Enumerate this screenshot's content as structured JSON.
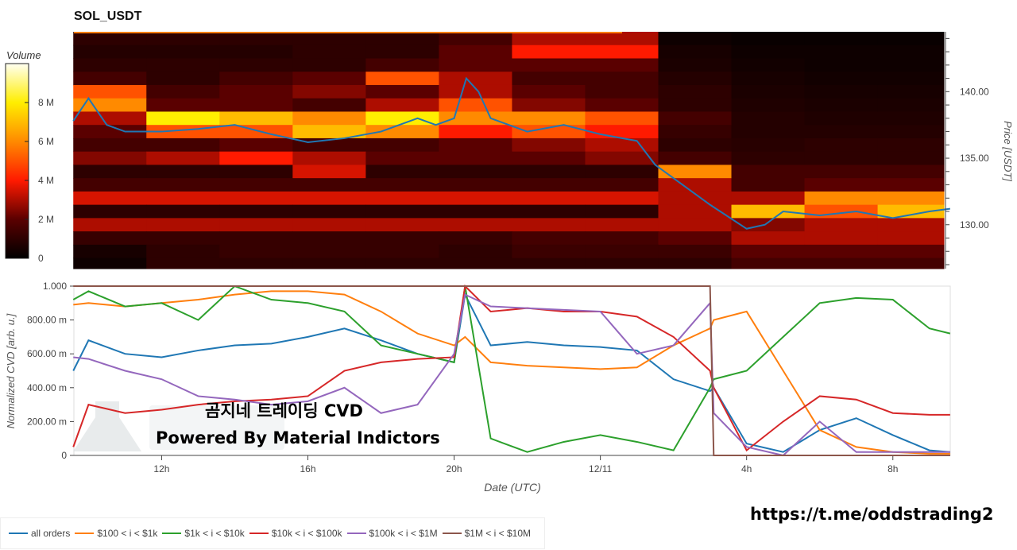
{
  "chart_data": [
    {
      "type": "heatmap",
      "title": "SOL_USDT",
      "ylabel": "Price [USDT]",
      "colorbar_label": "Volume",
      "colorbar_ticks": [
        "0",
        "2 M",
        "4 M",
        "6 M",
        "8 M"
      ],
      "colorbar_range": [
        0,
        10
      ],
      "colormap": [
        "#000000",
        "#5a0000",
        "#ff1a00",
        "#ff8a00",
        "#ffee00",
        "#fffff2"
      ],
      "ylim": [
        126.7,
        144.5
      ],
      "yticks": [
        "130.00",
        "135.00",
        "140.00"
      ],
      "time_columns": [
        "12/10 09:35",
        "12/10 11:35",
        "12/10 13:35",
        "12/10 15:35",
        "12/10 17:35",
        "12/10 19:35",
        "12/10 21:35",
        "12/10 23:35",
        "12/11 01:35",
        "12/11 03:35",
        "12/11 05:35",
        "12/11 07:35"
      ],
      "price_levels": [
        144,
        143,
        142,
        141,
        140,
        139,
        138,
        137,
        136,
        135,
        134,
        133,
        132,
        131,
        130,
        129,
        128,
        127
      ],
      "volume_millions": [
        [
          1,
          1,
          1,
          1,
          1,
          1.5,
          3,
          3,
          0.3,
          0.2,
          0.2,
          0.2
        ],
        [
          0.8,
          0.8,
          0.8,
          1,
          1,
          2,
          4,
          4,
          0.5,
          0.3,
          0.3,
          0.3
        ],
        [
          1,
          1,
          1,
          1,
          1.5,
          2,
          2,
          2,
          0.6,
          0.4,
          0.3,
          0.3
        ],
        [
          1.5,
          1,
          1.5,
          2,
          5,
          3,
          1.5,
          1.5,
          0.8,
          0.5,
          0.4,
          0.4
        ],
        [
          5,
          1.5,
          2,
          2.5,
          2,
          3,
          2,
          1.5,
          1,
          0.6,
          0.5,
          0.5
        ],
        [
          6,
          2,
          2,
          1.5,
          3,
          5,
          2.5,
          2,
          1,
          0.7,
          0.6,
          0.6
        ],
        [
          3,
          8,
          7,
          6,
          8,
          6,
          6,
          5,
          1.5,
          0.8,
          0.7,
          0.7
        ],
        [
          2,
          5,
          5,
          7,
          6,
          4,
          5,
          4,
          1.2,
          0.8,
          0.8,
          0.8
        ],
        [
          1.5,
          1.5,
          2,
          1.5,
          1.5,
          2,
          2.5,
          3,
          1,
          0.9,
          1,
          1
        ],
        [
          2.5,
          3,
          4,
          3,
          2,
          2,
          2,
          2.5,
          1.5,
          1,
          1,
          1
        ],
        [
          1,
          1,
          1,
          3.5,
          1,
          1,
          1,
          1,
          6,
          1.5,
          1.5,
          1.5
        ],
        [
          1.5,
          1.5,
          1.5,
          1.5,
          1.5,
          1.5,
          1.5,
          1.5,
          3,
          1.5,
          2,
          2
        ],
        [
          3.5,
          3.5,
          3.5,
          3.5,
          3.5,
          3.5,
          3.5,
          3.5,
          3,
          3,
          6,
          6
        ],
        [
          1,
          1,
          1,
          1,
          1,
          1,
          1,
          1,
          3,
          7,
          5,
          7
        ],
        [
          3,
          3,
          3,
          3,
          3,
          3,
          3,
          3,
          3,
          2.5,
          3,
          3
        ],
        [
          1.2,
          1.2,
          1.2,
          1.2,
          1.2,
          1.2,
          1.5,
          1.5,
          2,
          3,
          3,
          3
        ],
        [
          0.5,
          1,
          1.2,
          1.2,
          1.2,
          1,
          1.3,
          1.3,
          1.3,
          2,
          2,
          2
        ],
        [
          0.3,
          1,
          1,
          1,
          1,
          1,
          1,
          1,
          1,
          1.5,
          1.5,
          1.5
        ]
      ],
      "price_line": {
        "color": "#1f77b4",
        "x": [
          "12/10 09:35",
          "12/10 10:00",
          "12/10 10:30",
          "12/10 11:00",
          "12/10 12:00",
          "12/10 13:00",
          "12/10 14:00",
          "12/10 15:00",
          "12/10 16:00",
          "12/10 17:00",
          "12/10 18:00",
          "12/10 19:00",
          "12/10 19:30",
          "12/10 20:00",
          "12/10 20:20",
          "12/10 20:40",
          "12/10 21:00",
          "12/10 22:00",
          "12/10 23:00",
          "12/11 00:00",
          "12/11 01:00",
          "12/11 01:30",
          "12/11 02:00",
          "12/11 03:00",
          "12/11 04:00",
          "12/11 04:30",
          "12/11 05:00",
          "12/11 06:00",
          "12/11 07:00",
          "12/11 08:00",
          "12/11 09:00",
          "12/11 09:34"
        ],
        "y": [
          137.8,
          139.5,
          137.5,
          137,
          137,
          137.2,
          137.5,
          136.8,
          136.2,
          136.5,
          137,
          138,
          137.5,
          138,
          141,
          140,
          138,
          137,
          137.5,
          136.8,
          136.3,
          134.5,
          133.5,
          131.5,
          129.7,
          130,
          131,
          130.7,
          131,
          130.5,
          131,
          131.2
        ]
      }
    },
    {
      "type": "line",
      "xlabel": "Date (UTC)",
      "ylabel": "Normalized CVD [arb. u.]",
      "ylim": [
        0,
        1
      ],
      "yticks": [
        "0",
        "200.00 m",
        "400.00 m",
        "600.00 m",
        "800.00 m",
        "1.000"
      ],
      "xticks": [
        "12h",
        "16h",
        "20h",
        "12/11",
        "4h",
        "8h"
      ],
      "legend_placement": "bottom",
      "x": [
        "12/10 09:35",
        "12/10 10:00",
        "12/10 11:00",
        "12/10 12:00",
        "12/10 13:00",
        "12/10 14:00",
        "12/10 15:00",
        "12/10 16:00",
        "12/10 17:00",
        "12/10 18:00",
        "12/10 19:00",
        "12/10 20:00",
        "12/10 20:18",
        "12/10 21:00",
        "12/10 22:00",
        "12/10 23:00",
        "12/11 00:00",
        "12/11 01:00",
        "12/11 02:00",
        "12/11 03:00",
        "12/11 03:06",
        "12/11 04:00",
        "12/11 05:00",
        "12/11 06:00",
        "12/11 07:00",
        "12/11 08:00",
        "12/11 09:00",
        "12/11 09:34"
      ],
      "series": [
        {
          "name": "all orders",
          "color": "#1f77b4",
          "values": [
            0.5,
            0.68,
            0.6,
            0.58,
            0.62,
            0.65,
            0.66,
            0.7,
            0.75,
            0.68,
            0.6,
            0.55,
            0.95,
            0.65,
            0.67,
            0.65,
            0.64,
            0.62,
            0.45,
            0.38,
            0.4,
            0.07,
            0.02,
            0.15,
            0.22,
            0.12,
            0.03,
            0.02
          ]
        },
        {
          "name": "$100 < i < $1k",
          "color": "#ff7f0e",
          "values": [
            0.89,
            0.9,
            0.88,
            0.9,
            0.92,
            0.95,
            0.97,
            0.97,
            0.95,
            0.85,
            0.72,
            0.65,
            0.7,
            0.55,
            0.53,
            0.52,
            0.51,
            0.52,
            0.65,
            0.75,
            0.8,
            0.85,
            0.5,
            0.15,
            0.05,
            0.02,
            0.01,
            0.01
          ]
        },
        {
          "name": "$1k < i < $10k",
          "color": "#2ca02c",
          "values": [
            0.92,
            0.97,
            0.88,
            0.9,
            0.8,
            1.0,
            0.92,
            0.9,
            0.85,
            0.65,
            0.6,
            0.55,
            1.0,
            0.1,
            0.02,
            0.08,
            0.12,
            0.08,
            0.03,
            0.4,
            0.45,
            0.5,
            0.7,
            0.9,
            0.93,
            0.92,
            0.75,
            0.72
          ]
        },
        {
          "name": "$10k < i < $100k",
          "color": "#d62728",
          "values": [
            0.05,
            0.3,
            0.25,
            0.27,
            0.3,
            0.32,
            0.33,
            0.35,
            0.5,
            0.55,
            0.57,
            0.58,
            1.0,
            0.85,
            0.87,
            0.85,
            0.85,
            0.82,
            0.7,
            0.5,
            0.4,
            0.03,
            0.2,
            0.35,
            0.33,
            0.25,
            0.24,
            0.24
          ]
        },
        {
          "name": "$100k < i < $1M",
          "color": "#9467bd",
          "values": [
            0.58,
            0.57,
            0.5,
            0.45,
            0.35,
            0.33,
            0.3,
            0.32,
            0.4,
            0.25,
            0.3,
            0.6,
            0.95,
            0.88,
            0.87,
            0.86,
            0.85,
            0.6,
            0.65,
            0.9,
            0.25,
            0.05,
            0.0,
            0.2,
            0.02,
            0.02,
            0.02,
            0.02
          ]
        },
        {
          "name": "$1M < i < $10M",
          "color": "#8c564b",
          "values": [
            1,
            1,
            1,
            1,
            1,
            1,
            1,
            1,
            1,
            1,
            1,
            1,
            1,
            1,
            1,
            1,
            1,
            1,
            1,
            1,
            0,
            0,
            0,
            0,
            0,
            0,
            0,
            0
          ]
        }
      ]
    }
  ],
  "watermark": {
    "line1": "곰지네 트레이딩 CVD",
    "line2": "Powered By Material Indictors",
    "link": "https://t.me/oddstrading2",
    "logo": "MATERIAL INDICATORS"
  }
}
